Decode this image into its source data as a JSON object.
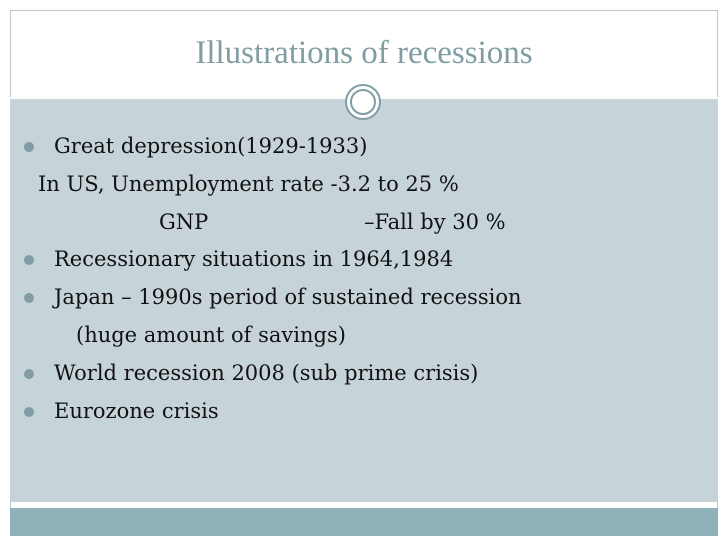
{
  "slide": {
    "title": "Illustrations of recessions",
    "lines": [
      "Great depression(1929-1933)",
      "In US, Unemployment rate -3.2 to 25 %",
      "GNP",
      "–Fall by 30 %",
      "Recessionary situations in 1964,1984",
      "Japan – 1990s period of sustained recession",
      "(huge amount of savings)",
      "World recession 2008 (sub prime crisis)",
      "Eurozone crisis"
    ]
  },
  "colors": {
    "title": "#7f9da3",
    "panel": "#c6d3d8",
    "band": "#8fb1b8",
    "bullet": "#7f9da3"
  },
  "icons": {
    "ornament": "concentric-circle-icon",
    "bullet": "filled-circle-bullet-icon"
  }
}
